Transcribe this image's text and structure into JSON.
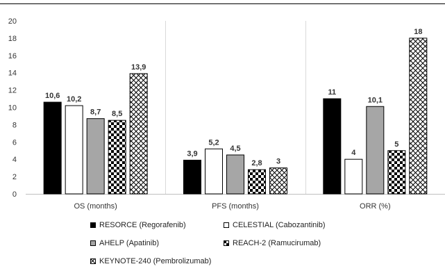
{
  "chart_data": {
    "type": "bar",
    "categories": [
      "OS (months)",
      "PFS (months)",
      "ORR (%)"
    ],
    "ylim": [
      0,
      20
    ],
    "yticks": [
      0,
      2,
      4,
      6,
      8,
      10,
      12,
      14,
      16,
      18,
      20
    ],
    "grid": false,
    "legend_position": "bottom",
    "series": [
      {
        "name": "RESORCE (Regorafenib)",
        "values": [
          10.6,
          3.9,
          11
        ],
        "labels": [
          "10,6",
          "3,9",
          "11"
        ],
        "fill": "solid",
        "color": "#000000"
      },
      {
        "name": "CELESTIAL (Cabozantinib)",
        "values": [
          10.2,
          5.2,
          4
        ],
        "labels": [
          "10,2",
          "5,2",
          "4"
        ],
        "fill": "outline",
        "color": "#ffffff"
      },
      {
        "name": "AHELP (Apatinib)",
        "values": [
          8.7,
          4.5,
          10.1
        ],
        "labels": [
          "8,7",
          "4,5",
          "10,1"
        ],
        "fill": "solid",
        "color": "#a6a6a6"
      },
      {
        "name": "REACH-2 (Ramucirumab)",
        "values": [
          8.5,
          2.8,
          5
        ],
        "labels": [
          "8,5",
          "2,8",
          "5"
        ],
        "fill": "checker",
        "color": "#000000"
      },
      {
        "name": "KEYNOTE-240 (Pembrolizumab)",
        "values": [
          13.9,
          3,
          18
        ],
        "labels": [
          "13,9",
          "3",
          "18"
        ],
        "fill": "diamond",
        "color": "#000000"
      }
    ]
  }
}
